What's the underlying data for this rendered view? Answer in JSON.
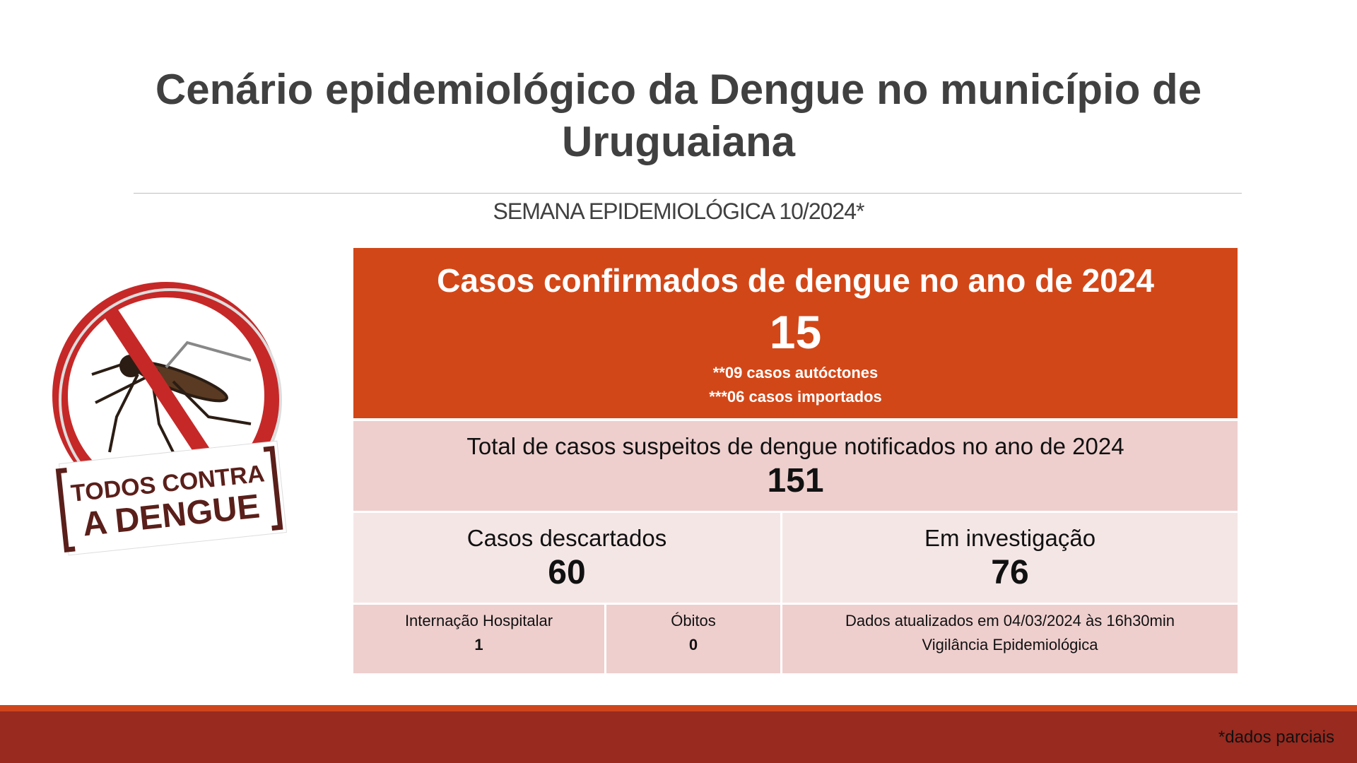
{
  "header": {
    "title": "Cenário epidemiológico da Dengue no município de Uruguaiana",
    "subtitle": "SEMANA EPIDEMIOLÓGICA 10/2024*"
  },
  "logo": {
    "line1": "TODOS CONTRA",
    "line2": "A DENGUE"
  },
  "confirmed": {
    "label": "Casos confirmados de dengue no ano de 2024",
    "value": 15,
    "notes": [
      "**09 casos autóctones",
      "***06 casos importados"
    ]
  },
  "suspected": {
    "label": "Total de casos suspeitos de dengue notificados no ano de 2024",
    "value": 151
  },
  "discarded": {
    "label": "Casos descartados",
    "value": 60
  },
  "investigation": {
    "label": "Em investigação",
    "value": 76
  },
  "hospitalization": {
    "label": "Internação Hospitalar",
    "value": 1
  },
  "deaths": {
    "label": "Óbitos",
    "value": 0
  },
  "update": {
    "lines": [
      "Dados atualizados em 04/03/2024 às 16h30min",
      "Vigilância Epidemiológica"
    ]
  },
  "footer": {
    "note": "*dados parciais"
  }
}
